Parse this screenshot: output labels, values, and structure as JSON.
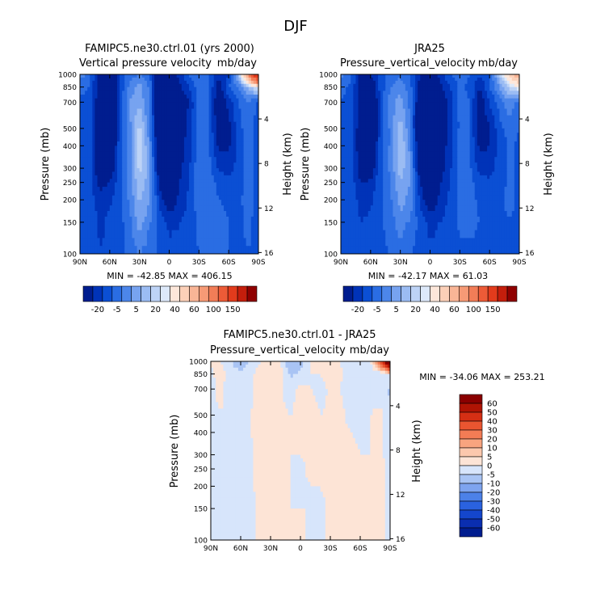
{
  "suptitle": "DJF",
  "chart_data": [
    {
      "type": "heatmap",
      "title": "FAMIPC5.ne30.ctrl.01 (yrs 2000)",
      "subtitle_left": "Vertical pressure velocity",
      "subtitle_right": "mb/day",
      "ylabel": "Pressure (mb)",
      "ylabel_right": "Height (km)",
      "x_ticks": [
        "90N",
        "60N",
        "30N",
        "0",
        "30S",
        "60S",
        "90S"
      ],
      "y_ticks": [
        "100",
        "150",
        "200",
        "250",
        "300",
        "400",
        "500",
        "700",
        "850",
        "1000"
      ],
      "y_ticks_right": [
        "16",
        "12",
        "8",
        "4"
      ],
      "ylim": [
        1000,
        100
      ],
      "y_scale": "log",
      "stats": "MIN = -42.85   MAX = 406.15",
      "x": [
        90,
        80,
        70,
        60,
        50,
        40,
        30,
        20,
        10,
        0,
        -10,
        -20,
        -30,
        -40,
        -50,
        -60,
        -70,
        -80,
        -90
      ],
      "y": [
        1000,
        850,
        700,
        500,
        400,
        300,
        250,
        200,
        150,
        100
      ],
      "z": [
        [
          -2,
          -8,
          -26,
          -32,
          -14,
          -8,
          -5,
          -9,
          -30,
          -30,
          -18,
          -9,
          -7,
          -10,
          -19,
          -15,
          8,
          60,
          150
        ],
        [
          -9,
          -10,
          -24,
          -30,
          -14,
          -4,
          2,
          -6,
          -30,
          -34,
          -22,
          -15,
          -7,
          -10,
          -23,
          -10,
          -5,
          8,
          20
        ],
        [
          -11,
          -11,
          -26,
          -34,
          -14,
          0,
          4,
          -6,
          -31,
          -30,
          -25,
          -20,
          -7,
          -10,
          -27,
          -18,
          -10,
          -5,
          -12
        ],
        [
          -12,
          -12,
          -27,
          -36,
          -13,
          -2,
          12,
          -4,
          -32,
          -38,
          -24,
          -18,
          -8,
          -9,
          -26,
          -22,
          -12,
          -7,
          -13
        ],
        [
          -12,
          -13,
          -28,
          -33,
          -12,
          -3,
          14,
          0,
          -30,
          -40,
          -24,
          -17,
          -7,
          -9,
          -22,
          -21,
          -13,
          -8,
          -13
        ],
        [
          -12,
          -13,
          -26,
          -27,
          -12,
          -2,
          12,
          2,
          -26,
          -38,
          -22,
          -16,
          -6,
          -8,
          -16,
          -17,
          -13,
          -8,
          -13
        ],
        [
          -12,
          -13,
          -22,
          -20,
          -12,
          -3,
          9,
          2,
          -20,
          -34,
          -20,
          -15,
          -7,
          -7,
          -12,
          -13,
          -12,
          -8,
          -12
        ],
        [
          -13,
          -12,
          -18,
          -16,
          -12,
          -4,
          6,
          1,
          -16,
          -26,
          -18,
          -14,
          -7,
          -7,
          -10,
          -11,
          -11,
          -8,
          -12
        ],
        [
          -14,
          -12,
          -16,
          -14,
          -12,
          -7,
          3,
          -4,
          -12,
          -17,
          -15,
          -14,
          -8,
          -8,
          -9,
          -10,
          -11,
          -9,
          -12
        ],
        [
          -14,
          -12,
          -15,
          -14,
          -12,
          -9,
          -4,
          -9,
          -10,
          -12,
          -14,
          -14,
          -10,
          -10,
          -10,
          -10,
          -11,
          -10,
          -12
        ]
      ],
      "colorbar_labels": [
        "-20",
        "-5",
        "5",
        "20",
        "40",
        "60",
        "100",
        "150"
      ]
    },
    {
      "type": "heatmap",
      "title": "JRA25",
      "subtitle_left": "Pressure_vertical_velocity",
      "subtitle_right": "mb/day",
      "ylabel": "Pressure (mb)",
      "ylabel_right": "Height (km)",
      "x_ticks": [
        "90N",
        "60N",
        "30N",
        "0",
        "30S",
        "60S",
        "90S"
      ],
      "y_ticks": [
        "100",
        "150",
        "200",
        "250",
        "300",
        "400",
        "500",
        "700",
        "850",
        "1000"
      ],
      "y_ticks_right": [
        "16",
        "12",
        "8",
        "4"
      ],
      "ylim": [
        1000,
        100
      ],
      "y_scale": "log",
      "stats": "MIN = -42.17   MAX =  61.03",
      "x": [
        90,
        80,
        70,
        60,
        50,
        40,
        30,
        20,
        10,
        0,
        -10,
        -20,
        -30,
        -40,
        -50,
        -60,
        -70,
        -80,
        -90
      ],
      "y": [
        1000,
        850,
        700,
        500,
        400,
        300,
        250,
        200,
        150,
        100
      ],
      "z": [
        [
          -3,
          -8,
          -22,
          -20,
          -12,
          -8,
          -6,
          -9,
          -20,
          -22,
          -18,
          -10,
          -8,
          -10,
          -14,
          -12,
          10,
          30,
          55
        ],
        [
          -8,
          -12,
          -22,
          -28,
          -13,
          -6,
          -2,
          -8,
          -24,
          -30,
          -22,
          -15,
          -9,
          -11,
          -20,
          -10,
          0,
          12,
          20
        ],
        [
          -10,
          -12,
          -23,
          -33,
          -13,
          -2,
          2,
          -7,
          -28,
          -32,
          -25,
          -18,
          -8,
          -10,
          -24,
          -15,
          -8,
          -2,
          -6
        ],
        [
          -11,
          -12,
          -25,
          -35,
          -13,
          -4,
          8,
          -5,
          -32,
          -40,
          -26,
          -18,
          -9,
          -10,
          -25,
          -20,
          -12,
          -8,
          -10
        ],
        [
          -11,
          -12,
          -25,
          -32,
          -12,
          -4,
          10,
          -2,
          -30,
          -41,
          -25,
          -17,
          -8,
          -10,
          -22,
          -20,
          -13,
          -9,
          -11
        ],
        [
          -11,
          -12,
          -24,
          -26,
          -11,
          -4,
          8,
          0,
          -26,
          -38,
          -23,
          -16,
          -8,
          -9,
          -17,
          -17,
          -13,
          -9,
          -11
        ],
        [
          -11,
          -12,
          -20,
          -19,
          -11,
          -5,
          5,
          0,
          -20,
          -33,
          -21,
          -15,
          -8,
          -8,
          -13,
          -14,
          -12,
          -9,
          -11
        ],
        [
          -12,
          -12,
          -17,
          -16,
          -11,
          -6,
          2,
          -2,
          -16,
          -25,
          -18,
          -14,
          -8,
          -8,
          -11,
          -12,
          -11,
          -9,
          -11
        ],
        [
          -12,
          -12,
          -15,
          -14,
          -11,
          -8,
          -2,
          -6,
          -12,
          -17,
          -15,
          -13,
          -9,
          -9,
          -10,
          -11,
          -11,
          -10,
          -11
        ],
        [
          -12,
          -12,
          -14,
          -13,
          -11,
          -10,
          -7,
          -10,
          -11,
          -13,
          -13,
          -13,
          -11,
          -11,
          -11,
          -11,
          -11,
          -11,
          -11
        ]
      ],
      "colorbar_labels": [
        "-20",
        "-5",
        "5",
        "20",
        "40",
        "60",
        "100",
        "150"
      ]
    },
    {
      "type": "heatmap",
      "title": "FAMIPC5.ne30.ctrl.01 - JRA25",
      "subtitle_left": "Pressure_vertical_velocity",
      "subtitle_right": "mb/day",
      "ylabel": "Pressure (mb)",
      "ylabel_right": "Height (km)",
      "x_ticks": [
        "90N",
        "60N",
        "30N",
        "0",
        "30S",
        "60S",
        "90S"
      ],
      "y_ticks": [
        "100",
        "150",
        "200",
        "250",
        "300",
        "400",
        "500",
        "700",
        "850",
        "1000"
      ],
      "y_ticks_right": [
        "16",
        "12",
        "8",
        "4"
      ],
      "ylim": [
        1000,
        100
      ],
      "y_scale": "log",
      "stats": "MIN = -34.06   MAX = 253.21",
      "x": [
        90,
        80,
        70,
        60,
        50,
        40,
        30,
        20,
        10,
        0,
        -10,
        -20,
        -30,
        -40,
        -50,
        -60,
        -70,
        -80,
        -90
      ],
      "y": [
        1000,
        850,
        700,
        500,
        400,
        300,
        250,
        200,
        150,
        100
      ],
      "z": [
        [
          1,
          0,
          -4,
          -12,
          -2,
          0,
          1,
          0,
          -10,
          -8,
          0,
          1,
          1,
          0,
          -5,
          -3,
          -2,
          30,
          95
        ],
        [
          -1,
          2,
          -2,
          -2,
          -1,
          2,
          4,
          2,
          -6,
          -4,
          0,
          0,
          2,
          1,
          -3,
          0,
          -5,
          -4,
          0
        ],
        [
          -1,
          1,
          -3,
          -1,
          -1,
          2,
          2,
          1,
          -3,
          2,
          0,
          -2,
          1,
          0,
          -3,
          -3,
          -2,
          -3,
          -6
        ],
        [
          -1,
          0,
          -2,
          -1,
          0,
          2,
          4,
          1,
          0,
          2,
          2,
          0,
          1,
          1,
          -1,
          -2,
          0,
          1,
          -3
        ],
        [
          -1,
          -1,
          -3,
          -1,
          0,
          1,
          4,
          2,
          0,
          1,
          1,
          0,
          1,
          1,
          0,
          -1,
          0,
          1,
          -2
        ],
        [
          -1,
          -1,
          -2,
          -1,
          -1,
          2,
          4,
          2,
          0,
          0,
          1,
          0,
          2,
          1,
          1,
          0,
          0,
          1,
          -2
        ],
        [
          -1,
          -1,
          -2,
          -1,
          -1,
          2,
          4,
          2,
          0,
          -1,
          1,
          0,
          1,
          1,
          1,
          1,
          0,
          1,
          -1
        ],
        [
          -1,
          0,
          -1,
          0,
          -1,
          2,
          4,
          3,
          0,
          -1,
          0,
          0,
          1,
          1,
          1,
          1,
          0,
          1,
          -1
        ],
        [
          -2,
          0,
          -1,
          0,
          -1,
          1,
          5,
          2,
          0,
          0,
          0,
          -1,
          1,
          1,
          1,
          1,
          0,
          1,
          -1
        ],
        [
          -2,
          0,
          -1,
          -1,
          -1,
          1,
          3,
          1,
          1,
          1,
          -1,
          -1,
          1,
          1,
          1,
          1,
          0,
          1,
          -1
        ]
      ],
      "colorbar_labels": [
        "60",
        "50",
        "40",
        "30",
        "20",
        "10",
        "5",
        "0",
        "-5",
        "-10",
        "-20",
        "-30",
        "-40",
        "-50",
        "-60"
      ]
    }
  ],
  "colormap_abs": {
    "levels": [
      -20,
      -15,
      -10,
      -5,
      0,
      5,
      10,
      15,
      20,
      30,
      40,
      50,
      60,
      80,
      100,
      125,
      150
    ],
    "colors": [
      "#001d8f",
      "#0033b8",
      "#0b4fd4",
      "#2a6de3",
      "#4c86ea",
      "#77a3f0",
      "#9bbcf3",
      "#bdd3f6",
      "#dde9fa",
      "#fde7da",
      "#fcd0b8",
      "#f9b596",
      "#f69a76",
      "#f27d57",
      "#ed5b37",
      "#e23b1c",
      "#c41e0c",
      "#8f0000"
    ]
  },
  "colormap_diff": {
    "levels": [
      -60,
      -50,
      -40,
      -30,
      -20,
      -10,
      -5,
      0,
      5,
      10,
      20,
      30,
      40,
      50,
      60
    ],
    "colors": [
      "#001d8f",
      "#0a2eb0",
      "#1446cc",
      "#2a62df",
      "#4c81e8",
      "#7ea4ef",
      "#a9c4f4",
      "#d7e5fb",
      "#fde4d6",
      "#fcc8ad",
      "#f8a47f",
      "#f37c55",
      "#ea5530",
      "#d52f14",
      "#b01404",
      "#8a0000"
    ]
  }
}
